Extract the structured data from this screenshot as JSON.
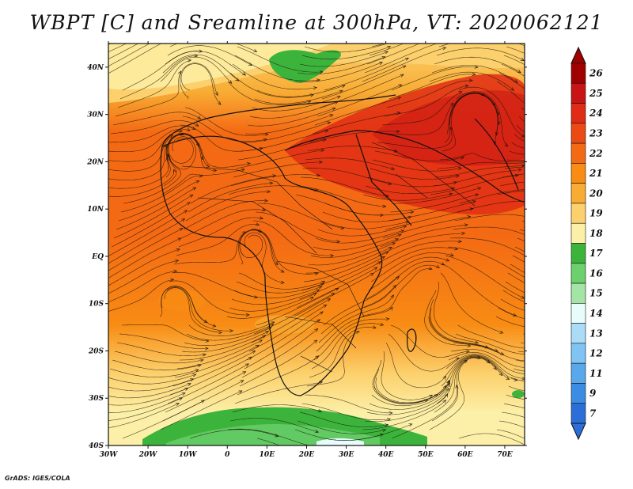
{
  "title": "WBPT [C] and Sreamline at 300hPa, VT: 2020062121",
  "footer": "GrADS: IGES/COLA",
  "axes": {
    "lon_labels": [
      "30W",
      "20W",
      "10W",
      "0",
      "10E",
      "20E",
      "30E",
      "40E",
      "50E",
      "60E",
      "70E"
    ],
    "lat_labels": [
      "40N",
      "30N",
      "20N",
      "10N",
      "EQ",
      "10S",
      "20S",
      "30S",
      "40S"
    ]
  },
  "colorbar": {
    "levels": [
      "26",
      "25",
      "24",
      "23",
      "22",
      "21",
      "20",
      "19",
      "18",
      "17",
      "16",
      "15",
      "14",
      "13",
      "12",
      "11",
      "9",
      "7"
    ],
    "colors": [
      "#a00000",
      "#c81414",
      "#e02c14",
      "#ec4a14",
      "#f46a14",
      "#f88c14",
      "#f8ac34",
      "#fcd06c",
      "#fcf0a8",
      "#3cb43c",
      "#6cd06c",
      "#a4e4a4",
      "#e8fcfc",
      "#aadcf8",
      "#80c4f4",
      "#5aa8ec",
      "#3c8ce4",
      "#2c6ed8"
    ]
  },
  "fields": {
    "variable": "WBPT [C]",
    "streamlines": "300hPa",
    "lon_range": [
      -30,
      75
    ],
    "lat_range": [
      -40,
      45
    ]
  }
}
